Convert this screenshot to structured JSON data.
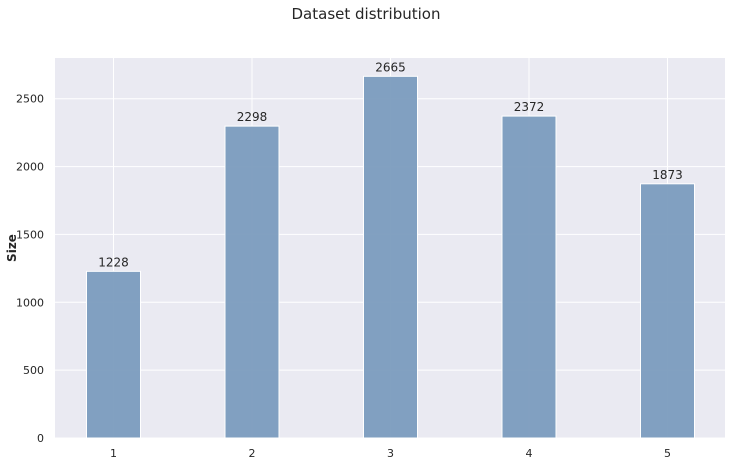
{
  "chart_data": {
    "type": "bar",
    "title": "Dataset distribution",
    "xlabel": "",
    "ylabel": "Size",
    "categories": [
      "1",
      "2",
      "3",
      "4",
      "5"
    ],
    "values": [
      1228,
      2298,
      2665,
      2372,
      1873
    ],
    "data_labels": [
      "1228",
      "2298",
      "2665",
      "2372",
      "1873"
    ],
    "ylim": [
      0,
      2800
    ],
    "yticks": [
      0,
      500,
      1000,
      1500,
      2000,
      2500
    ],
    "grid": true,
    "legend": "none",
    "colors": {
      "bar": "#7b9cbe",
      "bar_edge": "#ffffff",
      "plot_background": "#eaeaf2",
      "grid": "#ffffff",
      "text": "#262626"
    }
  }
}
